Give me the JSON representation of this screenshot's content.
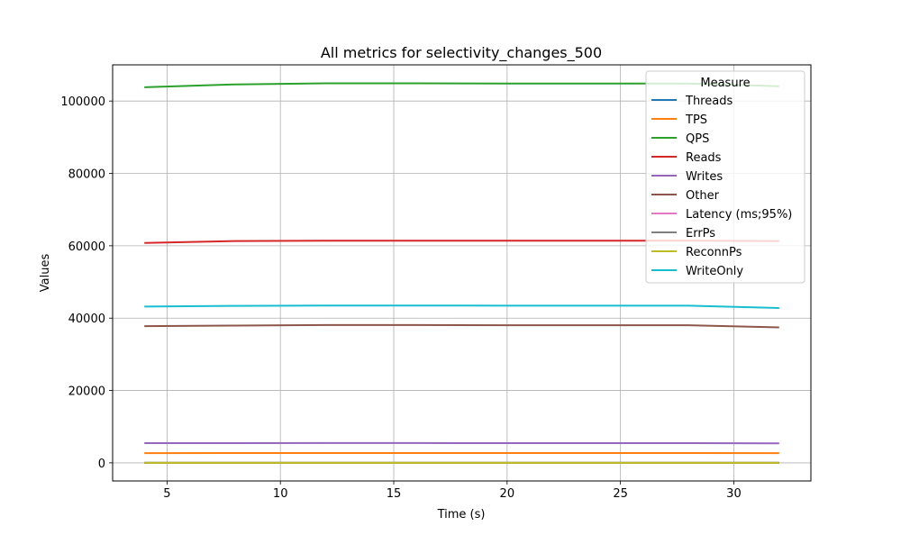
{
  "chart_data": {
    "type": "line",
    "title": "All metrics for selectivity_changes_500",
    "xlabel": "Time (s)",
    "ylabel": "Values",
    "xlim": [
      2.6,
      33.4
    ],
    "ylim": [
      -5000,
      110000
    ],
    "xticks": [
      5,
      10,
      15,
      20,
      25,
      30
    ],
    "yticks": [
      0,
      20000,
      40000,
      60000,
      80000,
      100000
    ],
    "grid": true,
    "legend_title": "Measure",
    "legend_position": "top-right",
    "x": [
      4,
      8,
      12,
      16,
      20,
      24,
      28,
      32
    ],
    "series": [
      {
        "name": "Threads",
        "color": "#1f77b4",
        "values": [
          8,
          8,
          8,
          8,
          8,
          8,
          8,
          8
        ]
      },
      {
        "name": "TPS",
        "color": "#ff7f0e",
        "values": [
          2700,
          2720,
          2725,
          2725,
          2725,
          2725,
          2725,
          2680
        ]
      },
      {
        "name": "QPS",
        "color": "#2ca02c",
        "values": [
          103800,
          104600,
          104900,
          104900,
          104850,
          104850,
          104850,
          104100
        ]
      },
      {
        "name": "Reads",
        "color": "#d62728",
        "values": [
          60800,
          61300,
          61400,
          61400,
          61400,
          61400,
          61400,
          61300
        ]
      },
      {
        "name": "Writes",
        "color": "#9467bd",
        "values": [
          5450,
          5450,
          5470,
          5470,
          5460,
          5460,
          5450,
          5400
        ]
      },
      {
        "name": "Other",
        "color": "#8c564b",
        "values": [
          37800,
          37950,
          38100,
          38100,
          38050,
          38050,
          38050,
          37450
        ]
      },
      {
        "name": "Latency (ms;95%)",
        "color": "#e377c2",
        "values": [
          5,
          5,
          5,
          5,
          5,
          5,
          5,
          5
        ]
      },
      {
        "name": "ErrPs",
        "color": "#7f7f7f",
        "values": [
          0,
          0,
          0,
          0,
          0,
          0,
          0,
          0
        ]
      },
      {
        "name": "ReconnPs",
        "color": "#bcbd22",
        "values": [
          0,
          0,
          0,
          0,
          0,
          0,
          0,
          0
        ]
      },
      {
        "name": "WriteOnly",
        "color": "#17becf",
        "values": [
          43200,
          43400,
          43500,
          43500,
          43450,
          43450,
          43450,
          42800
        ]
      }
    ]
  }
}
